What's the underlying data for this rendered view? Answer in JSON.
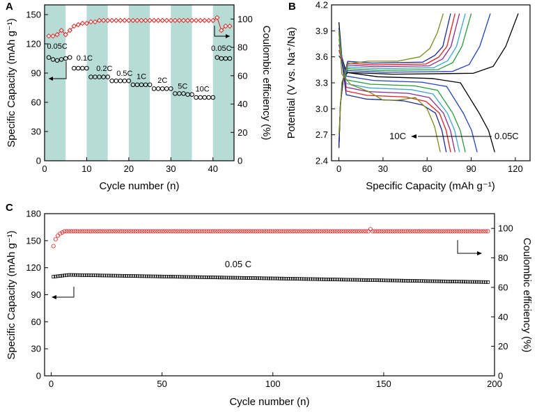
{
  "chart_data": [
    {
      "panel": "A",
      "type": "scatter",
      "xlabel": "Cycle number (n)",
      "ylabel": "Specific Capacity (mAh g⁻¹)",
      "y2label": "Coulombic efficiency (%)",
      "xlim": [
        0,
        45
      ],
      "ylim": [
        0,
        160
      ],
      "y2lim": [
        0,
        110
      ],
      "xticks": [
        "0",
        "10",
        "20",
        "30",
        "40"
      ],
      "yticks": [
        "0",
        "30",
        "60",
        "90",
        "120",
        "150"
      ],
      "y2ticks": [
        "0",
        "20",
        "40",
        "60",
        "80",
        "100"
      ],
      "shaded_bands": [
        [
          0,
          5
        ],
        [
          10,
          15
        ],
        [
          20,
          25
        ],
        [
          30,
          35
        ],
        [
          40,
          45
        ]
      ],
      "rate_labels": [
        {
          "text": "0.05C",
          "x": 3,
          "y": 115
        },
        {
          "text": "0.1C",
          "x": 9.5,
          "y": 103
        },
        {
          "text": "0.2C",
          "x": 14.2,
          "y": 92
        },
        {
          "text": "0.5C",
          "x": 19,
          "y": 87
        },
        {
          "text": "1C",
          "x": 23,
          "y": 84
        },
        {
          "text": "2C",
          "x": 28,
          "y": 80
        },
        {
          "text": "5C",
          "x": 32.8,
          "y": 74
        },
        {
          "text": "10C",
          "x": 37.5,
          "y": 71
        },
        {
          "text": "0.05C",
          "x": 42,
          "y": 113
        }
      ],
      "series": [
        {
          "name": "Capacity",
          "axis": "left",
          "marker": "circle",
          "color": "#000000",
          "x": [
            1,
            2,
            3,
            4,
            5,
            6,
            7,
            8,
            9,
            10,
            11,
            12,
            13,
            14,
            15,
            16,
            17,
            18,
            19,
            20,
            21,
            22,
            23,
            24,
            25,
            26,
            27,
            28,
            29,
            30,
            31,
            32,
            33,
            34,
            35,
            36,
            37,
            38,
            39,
            40,
            41,
            42,
            43,
            44
          ],
          "values": [
            106,
            104,
            103,
            104,
            105,
            106,
            95,
            95,
            95,
            95,
            86,
            86,
            86,
            86,
            86,
            82,
            82,
            82,
            82,
            82,
            78,
            78,
            78,
            78,
            78,
            74,
            74,
            74,
            74,
            74,
            69,
            69,
            69,
            68,
            68,
            65,
            65,
            65,
            65,
            65,
            106,
            105,
            105,
            105
          ]
        },
        {
          "name": "Coulombic efficiency",
          "axis": "right",
          "marker": "diamond",
          "color": "#e02020",
          "x": [
            1,
            2,
            3,
            4,
            5,
            6,
            7,
            8,
            9,
            10,
            11,
            12,
            13,
            14,
            15,
            16,
            17,
            18,
            19,
            20,
            21,
            22,
            23,
            24,
            25,
            26,
            27,
            28,
            29,
            30,
            31,
            32,
            33,
            34,
            35,
            36,
            37,
            38,
            39,
            40,
            41,
            42,
            43,
            44
          ],
          "values": [
            88,
            88,
            89,
            92,
            89,
            92,
            95,
            96,
            97,
            97,
            98,
            98,
            99,
            99,
            99,
            99,
            99,
            99,
            99,
            99,
            99,
            99,
            99,
            99,
            99,
            99,
            99,
            99,
            99,
            99,
            99,
            99,
            99,
            99,
            99,
            99,
            99,
            99,
            99,
            99,
            101,
            92,
            95,
            95
          ]
        }
      ]
    },
    {
      "panel": "B",
      "type": "line",
      "xlabel": "Specific Capacity (mAh g⁻¹)",
      "ylabel": "Potential (V vs. Na⁺/Na)",
      "xlim": [
        -5,
        130
      ],
      "ylim": [
        2.4,
        4.2
      ],
      "xticks": [
        "0",
        "30",
        "60",
        "90",
        "120"
      ],
      "yticks": [
        "2.4",
        "2.7",
        "3.0",
        "3.3",
        "3.6",
        "3.9",
        "4.2"
      ],
      "annotation_low": "10C",
      "annotation_high": "0.05C",
      "series": [
        {
          "name": "0.05C",
          "color": "#000000",
          "discharge_cap": 106,
          "charge_cap": 122
        },
        {
          "name": "0.1C",
          "color": "#1f3fbf",
          "discharge_cap": 94,
          "charge_cap": 103
        },
        {
          "name": "0.2C",
          "color": "#2a9a3a",
          "discharge_cap": 86,
          "charge_cap": 90
        },
        {
          "name": "0.5C",
          "color": "#3aa8c8",
          "discharge_cap": 82,
          "charge_cap": 86
        },
        {
          "name": "1C",
          "color": "#8b2a8b",
          "discharge_cap": 79,
          "charge_cap": 82
        },
        {
          "name": "2C",
          "color": "#e02020",
          "discharge_cap": 76,
          "charge_cap": 79
        },
        {
          "name": "5C",
          "color": "#1a2a9a",
          "discharge_cap": 73,
          "charge_cap": 76
        },
        {
          "name": "10C",
          "color": "#7a8a1a",
          "discharge_cap": 69,
          "charge_cap": 71
        }
      ]
    },
    {
      "panel": "C",
      "type": "scatter",
      "xlabel": "Cycle number (n)",
      "ylabel": "Specific Capacity (mAh g⁻¹)",
      "y2label": "Coulombic efficiency (%)",
      "xlim": [
        -3,
        200
      ],
      "ylim": [
        0,
        180
      ],
      "y2lim": [
        0,
        110
      ],
      "xticks": [
        "0",
        "50",
        "100",
        "150",
        "200"
      ],
      "yticks": [
        "0",
        "30",
        "60",
        "90",
        "120",
        "150",
        "180"
      ],
      "y2ticks": [
        "0",
        "20",
        "40",
        "60",
        "80",
        "100"
      ],
      "rate_label": "0.05 C",
      "capacity_profile": {
        "start": 110,
        "peak": 112,
        "peak_cycle": 8,
        "end": 104,
        "cycles": 197
      },
      "efficiency_profile": {
        "start": 88,
        "plateau": 98,
        "cycles": 197
      }
    }
  ]
}
